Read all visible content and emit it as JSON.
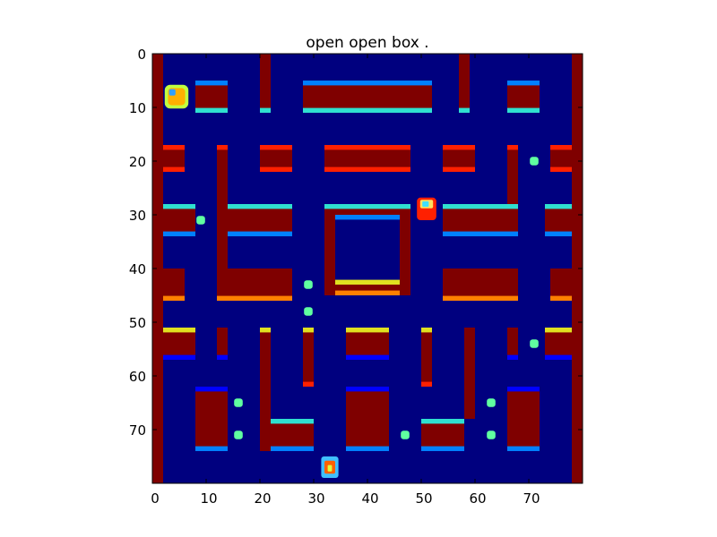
{
  "title": "open open box .",
  "axes": {
    "x": {
      "range": [
        0,
        80
      ],
      "ticks": [
        "0",
        "10",
        "20",
        "30",
        "40",
        "50",
        "60",
        "70"
      ],
      "tick_values": [
        0,
        10,
        20,
        30,
        40,
        50,
        60,
        70
      ]
    },
    "y": {
      "range": [
        0,
        80
      ],
      "ticks": [
        "0",
        "10",
        "20",
        "30",
        "40",
        "50",
        "60",
        "70"
      ],
      "tick_values": [
        0,
        10,
        20,
        30,
        40,
        50,
        60,
        70
      ],
      "inverted": true
    }
  },
  "colormap": "jet",
  "colors": {
    "background": "#00007f",
    "wall": "#7f0000",
    "cyan_edge": "#2fe0d0",
    "blue_edge": "#0080ff",
    "red_edge": "#ff2000",
    "yellow_edge": "#e0e020",
    "orange_edge": "#ff8000",
    "deep_blue_edge": "#0000ff",
    "pellet": "#60ffa0",
    "player": "#ffb000",
    "ghost": "#ff2000"
  },
  "game": {
    "pellets": [
      {
        "x": 9,
        "y": 31
      },
      {
        "x": 29,
        "y": 43
      },
      {
        "x": 29,
        "y": 48
      },
      {
        "x": 71,
        "y": 20
      },
      {
        "x": 71,
        "y": 54
      },
      {
        "x": 16,
        "y": 65
      },
      {
        "x": 16,
        "y": 71
      },
      {
        "x": 47,
        "y": 71
      },
      {
        "x": 63,
        "y": 65
      },
      {
        "x": 63,
        "y": 71
      }
    ],
    "agents": [
      {
        "name": "player",
        "x": 4.5,
        "y": 8
      },
      {
        "name": "ghost",
        "x": 51,
        "y": 29
      },
      {
        "name": "ghost-2",
        "x": 33,
        "y": 77
      }
    ]
  }
}
